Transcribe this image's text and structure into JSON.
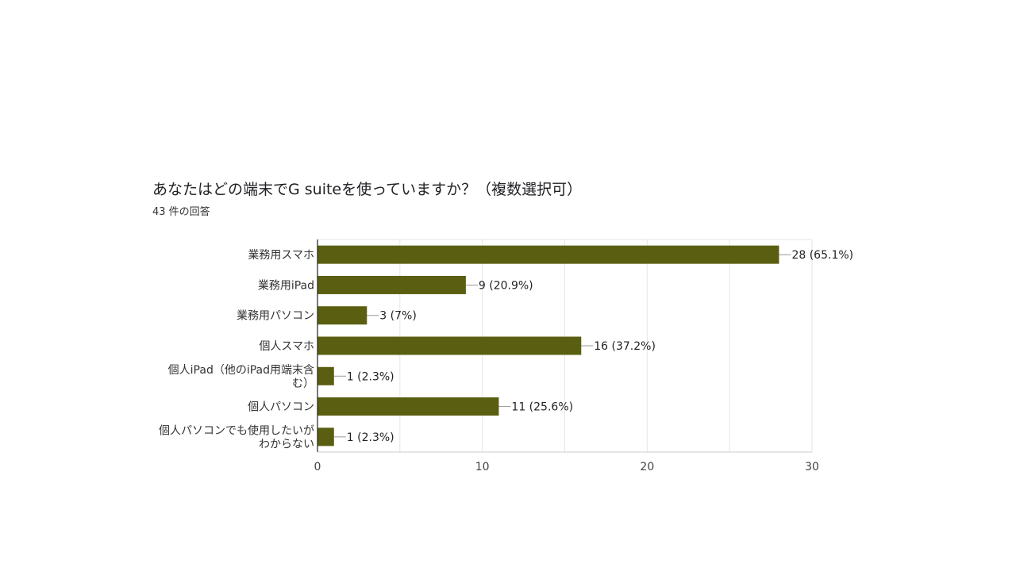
{
  "chart_data": {
    "type": "bar",
    "orientation": "horizontal",
    "title": "あなたはどの端末でG suiteを使っていますか？（複数選択可）",
    "subtitle": "43 件の回答",
    "categories": [
      [
        "業務用スマホ"
      ],
      [
        "業務用iPad"
      ],
      [
        "業務用パソコン"
      ],
      [
        "個人スマホ"
      ],
      [
        "個人iPad（他のiPad用端末含",
        "む）"
      ],
      [
        "個人パソコン"
      ],
      [
        "個人パソコンでも使用したいが",
        "わからない"
      ]
    ],
    "values": [
      28,
      9,
      3,
      16,
      1,
      11,
      1
    ],
    "data_labels": [
      "28 (65.1%)",
      "9 (20.9%)",
      "3 (7%)",
      "16 (37.2%)",
      "1 (2.3%)",
      "11 (25.6%)",
      "1 (2.3%)"
    ],
    "xlim": [
      0,
      30
    ],
    "x_ticks": [
      0,
      10,
      20,
      30
    ],
    "grid": true,
    "bar_color": "#5a5e10",
    "grid_color": "#e6e6e6",
    "axis_color": "#222222"
  }
}
